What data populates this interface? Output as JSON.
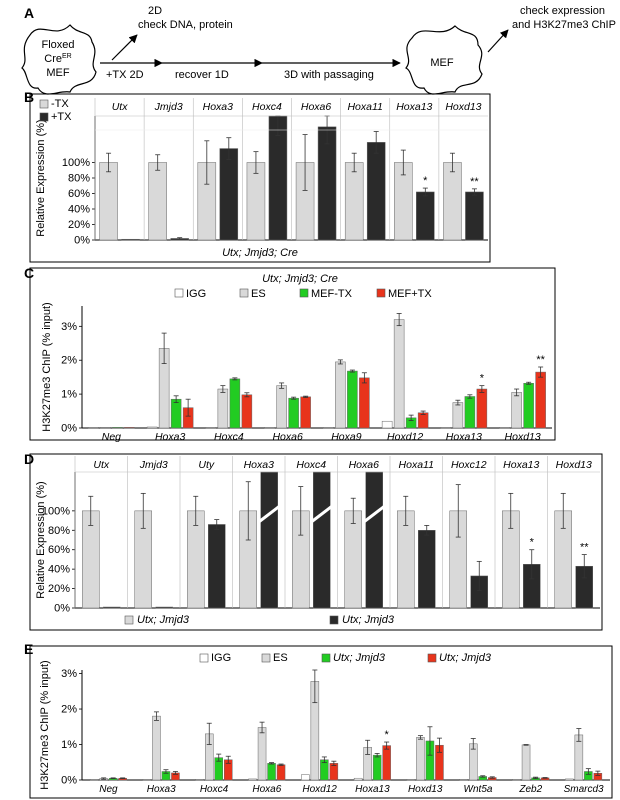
{
  "panels": {
    "a": "A",
    "b": "B",
    "c": "C",
    "d": "D",
    "e": "E"
  },
  "schematic": {
    "cell1": [
      "Floxed",
      "Cre",
      "MEF"
    ],
    "cell1_sup": "ER",
    "step1": "+TX 2D",
    "branch": [
      "2D",
      "check DNA, protein"
    ],
    "step2": "recover 1D",
    "step3": "3D with passaging",
    "cell2": "MEF",
    "branch2": [
      "check expression",
      "and H3K27me3 ChIP"
    ]
  },
  "colors": {
    "light": "#d9d9d9",
    "dark": "#2a2a2a",
    "green": "#22cc22",
    "red": "#e8341c",
    "white": "#ffffff"
  },
  "chart_data": [
    {
      "id": "B",
      "type": "bar",
      "ylabel": "Relative Expression (%)",
      "yticks": [
        "0%",
        "20%",
        "40%",
        "60%",
        "80%",
        "100%"
      ],
      "ylim": [
        0,
        160
      ],
      "legend": [
        "-TX",
        "+TX"
      ],
      "caption": "Utx; Jmjd3; Cre",
      "categories": [
        "Utx",
        "Jmjd3",
        "Hoxa3",
        "Hoxc4",
        "Hoxa6",
        "Hoxa11",
        "Hoxa13",
        "Hoxd13"
      ],
      "series": [
        {
          "name": "-TX",
          "values": [
            100,
            100,
            100,
            100,
            100,
            100,
            100,
            100
          ],
          "err": [
            12,
            10,
            28,
            14,
            36,
            12,
            16,
            12
          ]
        },
        {
          "name": "+TX",
          "values": [
            1,
            2,
            118,
            170,
            146,
            126,
            62,
            62
          ],
          "err": [
            0,
            1,
            14,
            35,
            22,
            14,
            5,
            4
          ]
        }
      ],
      "marks": [
        "",
        "",
        "",
        "",
        "",
        "",
        "*",
        "**"
      ]
    },
    {
      "id": "C",
      "type": "bar",
      "ylabel": "H3K27me3 ChIP (% input)",
      "yticks": [
        "0%",
        "1%",
        "2%",
        "3%"
      ],
      "ylim": [
        0,
        3.6
      ],
      "title": "Utx; Jmjd3; Cre",
      "legend": [
        "IGG",
        "ES",
        "MEF-TX",
        "MEF+TX"
      ],
      "categories": [
        "Neg",
        "Hoxa3",
        "Hoxc4",
        "Hoxa6",
        "Hoxa9",
        "Hoxd12",
        "Hoxa13",
        "Hoxd13"
      ],
      "series": [
        {
          "name": "IGG",
          "values": [
            0.02,
            0.03,
            0.02,
            0.02,
            0.02,
            0.2,
            0.02,
            0.02
          ],
          "err": [
            0,
            0,
            0,
            0,
            0,
            0,
            0,
            0
          ]
        },
        {
          "name": "ES",
          "values": [
            0.02,
            2.35,
            1.15,
            1.25,
            1.95,
            3.2,
            0.75,
            1.05
          ],
          "err": [
            0,
            0.45,
            0.1,
            0.08,
            0.06,
            0.18,
            0.07,
            0.1
          ]
        },
        {
          "name": "MEF-TX",
          "values": [
            0.02,
            0.85,
            1.45,
            0.88,
            1.68,
            0.3,
            0.93,
            1.32
          ],
          "err": [
            0,
            0.1,
            0.03,
            0.03,
            0.03,
            0.08,
            0.05,
            0.03
          ]
        },
        {
          "name": "MEF+TX",
          "values": [
            0.02,
            0.6,
            0.98,
            0.92,
            1.48,
            0.45,
            1.15,
            1.65
          ],
          "err": [
            0,
            0.25,
            0.06,
            0.02,
            0.15,
            0.05,
            0.1,
            0.15
          ]
        }
      ],
      "marks": [
        "",
        "",
        "",
        "",
        "",
        "",
        "*",
        "**"
      ]
    },
    {
      "id": "D",
      "type": "bar",
      "ylabel": "Relative Expression (%)",
      "yticks": [
        "0%",
        "20%",
        "40%",
        "60%",
        "80%",
        "100%"
      ],
      "ylim": [
        0,
        140
      ],
      "legend": [
        "Utx; Jmjd3",
        "Utx; Jmjd3"
      ],
      "categories": [
        "Utx",
        "Jmjd3",
        "Uty",
        "Hoxa3",
        "Hoxc4",
        "Hoxa6",
        "Hoxa11",
        "Hoxc12",
        "Hoxa13",
        "Hoxd13"
      ],
      "series": [
        {
          "name": "Utx; Jmjd3",
          "values": [
            100,
            100,
            100,
            100,
            100,
            100,
            100,
            100,
            100,
            100
          ],
          "err": [
            15,
            18,
            15,
            30,
            25,
            13,
            15,
            27,
            18,
            18
          ]
        },
        {
          "name": "Utx; Jmjd3",
          "values": [
            1,
            1,
            86,
            140,
            140,
            140,
            80,
            33,
            45,
            43
          ],
          "err": [
            0,
            0,
            5,
            0,
            0,
            0,
            5,
            15,
            15,
            12
          ]
        }
      ],
      "broken": [
        false,
        false,
        false,
        true,
        true,
        true,
        false,
        false,
        false,
        false
      ],
      "marks": [
        "",
        "",
        "",
        "",
        "",
        "",
        "",
        "",
        "*",
        "**"
      ]
    },
    {
      "id": "E",
      "type": "bar",
      "ylabel": "H3K27me3 ChIP (% input)",
      "yticks": [
        "0%",
        "1%",
        "2%",
        "3%"
      ],
      "ylim": [
        0,
        3.1
      ],
      "legend": [
        "IGG",
        "ES",
        "Utx; Jmjd3",
        "Utx; Jmjd3"
      ],
      "categories": [
        "Neg",
        "Hoxa3",
        "Hoxc4",
        "Hoxa6",
        "Hoxd12",
        "Hoxa13",
        "Hoxd13",
        "Wnt5a",
        "Zeb2",
        "Smarcd3"
      ],
      "series": [
        {
          "name": "IGG",
          "values": [
            0.02,
            0.02,
            0.02,
            0.03,
            0.15,
            0.05,
            0.02,
            0.02,
            0.02,
            0.03
          ],
          "err": [
            0,
            0,
            0,
            0,
            0,
            0,
            0,
            0,
            0,
            0
          ]
        },
        {
          "name": "ES",
          "values": [
            0.04,
            1.8,
            1.3,
            1.48,
            2.78,
            0.92,
            1.2,
            1.02,
            0.99,
            1.27
          ],
          "err": [
            0.02,
            0.12,
            0.3,
            0.15,
            0.6,
            0.2,
            0.05,
            0.15,
            0.01,
            0.18
          ]
        },
        {
          "name": "Utx; Jmjd3",
          "values": [
            0.05,
            0.24,
            0.63,
            0.47,
            0.57,
            0.7,
            1.1,
            0.1,
            0.06,
            0.24
          ],
          "err": [
            0.01,
            0.05,
            0.1,
            0.02,
            0.08,
            0.05,
            0.4,
            0.02,
            0.02,
            0.08
          ]
        },
        {
          "name": "Utx; Jmjd3",
          "values": [
            0.05,
            0.2,
            0.57,
            0.43,
            0.47,
            0.97,
            0.98,
            0.07,
            0.06,
            0.19
          ],
          "err": [
            0.01,
            0.04,
            0.1,
            0.02,
            0.06,
            0.1,
            0.2,
            0.02,
            0.01,
            0.06
          ]
        }
      ],
      "marks": [
        "",
        "",
        "",
        "",
        "",
        "*",
        "",
        "",
        "",
        ""
      ]
    }
  ]
}
